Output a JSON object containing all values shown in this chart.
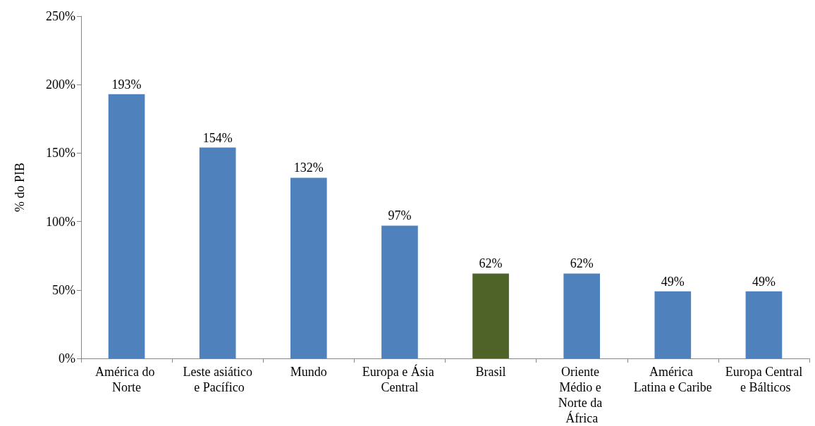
{
  "chart_data": {
    "type": "bar",
    "ylabel": "% do PIB",
    "categories": [
      "América do Norte",
      "Leste asiático e Pacífico",
      "Mundo",
      "Europa e Ásia Central",
      "Brasil",
      "Oriente Médio e Norte da África",
      "América Latina e Caribe",
      "Europa Central e Bálticos"
    ],
    "values": [
      193,
      154,
      132,
      97,
      62,
      62,
      49,
      49
    ],
    "value_labels": [
      "193%",
      "154%",
      "132%",
      "97%",
      "62%",
      "62%",
      "49%",
      "49%"
    ],
    "colors": [
      "#4f81bd",
      "#4f81bd",
      "#4f81bd",
      "#4f81bd",
      "#4f6228",
      "#4f81bd",
      "#4f81bd",
      "#4f81bd"
    ],
    "ylim": [
      0,
      250
    ],
    "yticks": [
      {
        "value": 0,
        "label": "0%"
      },
      {
        "value": 50,
        "label": "50%"
      },
      {
        "value": 100,
        "label": "100%"
      },
      {
        "value": 150,
        "label": "150%"
      },
      {
        "value": 200,
        "label": "200%"
      },
      {
        "value": 250,
        "label": "250%"
      }
    ],
    "grid": false
  }
}
